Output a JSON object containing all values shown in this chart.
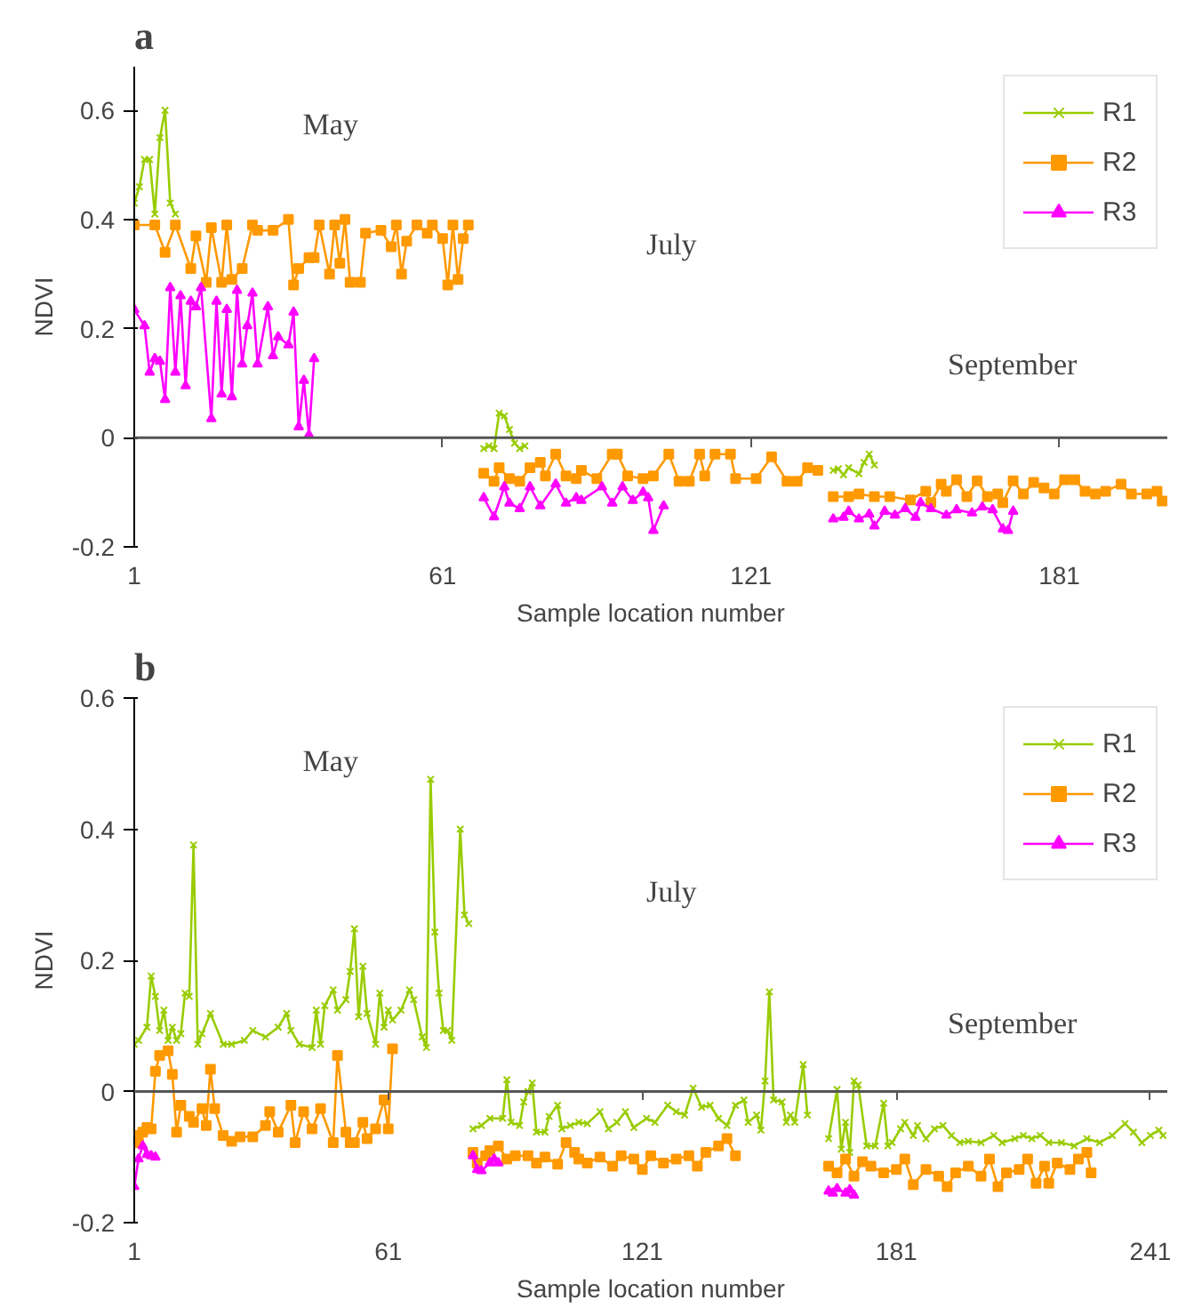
{
  "chart_data": [
    {
      "type": "line",
      "title": "a",
      "xlabel": "Sample location number",
      "ylabel": "NDVI",
      "xlim": [
        1,
        202
      ],
      "ylim": [
        -0.2,
        0.68
      ],
      "xticks": [
        1,
        61,
        121,
        181
      ],
      "yticks": [
        {
          "value": -0.2,
          "label": "-0.2"
        },
        0,
        0.2,
        0.4,
        0.6
      ],
      "legend": "top right",
      "grid": false,
      "line_style": "solid",
      "annotations": [
        "May",
        "July",
        "September"
      ],
      "ref_lines": [
        {
          "axis": "y",
          "value": 0,
          "color": "#555555"
        }
      ],
      "series": [
        {
          "name": "R1",
          "color": "#99cc00",
          "marker": "cross",
          "x": [
            1,
            2,
            3,
            4,
            5,
            6,
            7,
            8,
            9,
            40,
            69,
            70,
            71,
            72,
            73,
            74,
            75,
            76,
            77,
            110,
            137,
            138,
            139,
            140,
            142,
            143,
            144,
            145
          ],
          "values": [
            0.43,
            0.46,
            0.51,
            0.51,
            0.41,
            0.55,
            0.6,
            0.43,
            0.41,
            null,
            -0.02,
            -0.015,
            -0.02,
            0.045,
            0.04,
            0.015,
            -0.01,
            -0.02,
            -0.015,
            null,
            -0.06,
            -0.057,
            -0.068,
            -0.055,
            -0.066,
            -0.045,
            -0.03,
            -0.05
          ]
        },
        {
          "name": "R2",
          "color": "#ff9900",
          "marker": "square",
          "x": [
            1,
            5,
            7,
            9,
            12,
            13,
            15,
            16,
            18,
            19,
            20,
            22,
            24,
            25,
            28,
            31,
            32,
            33,
            35,
            36,
            37,
            39,
            40,
            41,
            42,
            43,
            45,
            46,
            49,
            51,
            52,
            53,
            54,
            56,
            58,
            59,
            61,
            62,
            63,
            64,
            65,
            66,
            67,
            69,
            71,
            72,
            74,
            76,
            78,
            80,
            81,
            83,
            85,
            87,
            88,
            91,
            94,
            95,
            97,
            100,
            102,
            105,
            107,
            109,
            111,
            112,
            114,
            117,
            118,
            122,
            125,
            128,
            130,
            132,
            134,
            135.5,
            137,
            140,
            142,
            145,
            148,
            152,
            155,
            156,
            158,
            159,
            161,
            163,
            165,
            167,
            169,
            170,
            172,
            174,
            176,
            178,
            180,
            182,
            184,
            186,
            188,
            190,
            193,
            195,
            198,
            200,
            201
          ],
          "values": [
            0.39,
            0.39,
            0.34,
            0.39,
            0.31,
            0.37,
            0.285,
            0.385,
            0.285,
            0.39,
            0.29,
            0.31,
            0.39,
            0.38,
            0.38,
            0.4,
            0.28,
            0.31,
            0.33,
            0.33,
            0.39,
            0.3,
            0.39,
            0.32,
            0.4,
            0.285,
            0.285,
            0.375,
            0.38,
            0.35,
            0.39,
            0.3,
            0.36,
            0.39,
            0.375,
            0.39,
            0.365,
            0.28,
            0.39,
            0.29,
            0.365,
            0.39,
            null,
            -0.065,
            -0.08,
            -0.055,
            -0.075,
            -0.08,
            -0.055,
            -0.045,
            -0.07,
            -0.03,
            -0.07,
            -0.075,
            -0.06,
            -0.075,
            -0.03,
            -0.03,
            -0.07,
            -0.075,
            -0.07,
            -0.03,
            -0.08,
            -0.08,
            -0.03,
            -0.07,
            -0.03,
            -0.03,
            -0.075,
            -0.075,
            -0.035,
            -0.08,
            -0.08,
            -0.055,
            -0.06,
            null,
            -0.108,
            -0.108,
            -0.103,
            -0.108,
            -0.108,
            -0.114,
            -0.098,
            -0.119,
            -0.085,
            -0.098,
            -0.077,
            -0.108,
            -0.079,
            -0.108,
            -0.103,
            -0.119,
            -0.079,
            -0.103,
            -0.082,
            -0.092,
            -0.103,
            -0.077,
            -0.077,
            -0.098,
            -0.103,
            -0.098,
            -0.085,
            -0.103,
            -0.103,
            -0.098,
            -0.116
          ]
        },
        {
          "name": "R3",
          "color": "#ff00ff",
          "marker": "triangle",
          "x": [
            1,
            3,
            4,
            5,
            6,
            7,
            8,
            9,
            10,
            11,
            12,
            13,
            14,
            16,
            17,
            18,
            19,
            20,
            21,
            22,
            23,
            24,
            25,
            27,
            28,
            29,
            31,
            32,
            33,
            34,
            35,
            36,
            50,
            69,
            71,
            73,
            74,
            76,
            78,
            80,
            83,
            85,
            87,
            88,
            92,
            94,
            96,
            98,
            100,
            101,
            102,
            104,
            120,
            137,
            139,
            140,
            142,
            144,
            145,
            147,
            149,
            151,
            153,
            154,
            156,
            159,
            161,
            164,
            166,
            168,
            170,
            171,
            172
          ],
          "values": [
            0.235,
            0.205,
            0.12,
            0.145,
            0.14,
            0.07,
            0.275,
            0.12,
            0.26,
            0.095,
            0.25,
            0.24,
            0.275,
            0.035,
            0.25,
            0.08,
            0.235,
            0.075,
            0.27,
            0.135,
            0.205,
            0.265,
            0.135,
            0.24,
            0.15,
            0.185,
            0.17,
            0.23,
            0.02,
            0.105,
            0.005,
            0.145,
            null,
            -0.11,
            -0.145,
            -0.09,
            -0.12,
            -0.13,
            -0.09,
            -0.125,
            -0.085,
            -0.12,
            -0.11,
            -0.115,
            -0.09,
            -0.12,
            -0.09,
            -0.115,
            -0.1,
            -0.11,
            -0.17,
            -0.125,
            null,
            -0.149,
            -0.146,
            -0.135,
            -0.149,
            -0.14,
            -0.162,
            -0.135,
            -0.142,
            -0.13,
            -0.146,
            -0.119,
            -0.13,
            -0.142,
            -0.132,
            -0.138,
            -0.127,
            -0.132,
            -0.167,
            -0.17,
            -0.135
          ]
        }
      ]
    },
    {
      "type": "line",
      "title": "b",
      "xlabel": "Sample location number",
      "ylabel": "NDVI",
      "xlim": [
        1,
        245
      ],
      "ylim": [
        -0.2,
        0.6
      ],
      "xticks": [
        1,
        61,
        121,
        181,
        241
      ],
      "yticks": [
        {
          "value": -0.2,
          "label": "-0.2"
        },
        0,
        0.2,
        0.4,
        0.6
      ],
      "legend": "top right",
      "grid": false,
      "line_style": "solid",
      "annotations": [
        "May",
        "July",
        "September"
      ],
      "ref_lines": [
        {
          "axis": "y",
          "value": 0,
          "color": "#555555"
        }
      ],
      "series": [
        {
          "name": "R1",
          "color": "#99cc00",
          "marker": "cross",
          "x": [
            1,
            2,
            4,
            5,
            6,
            7,
            8,
            9,
            10,
            11,
            12,
            13,
            14,
            15,
            16,
            17,
            19,
            22,
            24,
            27,
            29,
            32,
            35,
            37,
            38,
            40,
            43,
            44,
            45,
            46,
            48,
            49,
            51,
            52,
            53,
            54,
            55,
            56,
            58,
            59,
            60,
            61,
            62,
            64,
            66,
            67,
            69,
            70,
            71,
            72,
            73,
            74,
            75,
            76,
            78,
            79,
            80,
            80.5,
            81,
            83,
            85,
            88,
            89,
            90,
            92,
            93,
            94,
            95,
            96,
            98,
            99,
            101,
            102,
            104,
            106,
            108,
            111,
            113,
            115,
            117,
            119,
            122,
            124,
            127,
            129,
            131,
            133,
            135,
            137,
            139,
            141,
            143,
            145,
            146,
            148,
            149,
            150,
            151,
            152,
            154,
            155,
            156,
            157,
            159,
            160,
            163,
            165,
            167,
            168,
            169,
            170,
            171,
            172,
            174,
            176,
            178,
            179,
            180,
            182,
            183,
            185,
            186,
            188,
            190,
            192,
            194,
            196,
            198,
            201,
            204,
            206,
            209,
            211,
            213,
            215,
            217,
            220,
            223,
            226,
            229,
            232,
            235,
            237,
            239,
            241,
            243,
            244
          ],
          "values": [
            0.072,
            0.078,
            0.098,
            0.176,
            0.145,
            0.093,
            0.124,
            0.078,
            0.098,
            0.078,
            0.088,
            0.15,
            0.145,
            0.376,
            0.072,
            0.088,
            0.119,
            0.072,
            0.072,
            0.078,
            0.093,
            0.083,
            0.098,
            0.119,
            0.093,
            0.072,
            0.067,
            0.124,
            0.072,
            0.131,
            0.155,
            0.124,
            0.14,
            0.183,
            0.248,
            0.114,
            0.191,
            0.119,
            0.072,
            0.15,
            0.098,
            0.124,
            0.109,
            0.124,
            0.155,
            0.14,
            0.083,
            0.067,
            0.476,
            0.243,
            0.15,
            0.093,
            0.093,
            0.078,
            0.4,
            0.269,
            0.256,
            null,
            -0.057,
            -0.052,
            -0.041,
            -0.041,
            0.018,
            -0.047,
            -0.052,
            -0.016,
            0.0,
            0.013,
            -0.062,
            -0.062,
            -0.038,
            -0.021,
            -0.057,
            -0.052,
            -0.047,
            -0.049,
            -0.031,
            -0.057,
            -0.047,
            -0.031,
            -0.055,
            -0.041,
            -0.047,
            -0.021,
            -0.031,
            -0.036,
            0.005,
            -0.024,
            -0.021,
            -0.041,
            -0.052,
            -0.021,
            -0.013,
            -0.047,
            -0.036,
            -0.059,
            0.016,
            0.152,
            -0.013,
            -0.016,
            -0.047,
            -0.036,
            -0.047,
            0.041,
            -0.036,
            null,
            -0.072,
            0.003,
            -0.088,
            -0.047,
            -0.093,
            0.016,
            0.01,
            -0.083,
            -0.083,
            -0.018,
            -0.083,
            -0.078,
            -0.057,
            -0.047,
            -0.067,
            -0.052,
            -0.072,
            -0.057,
            -0.052,
            -0.067,
            -0.078,
            -0.076,
            -0.078,
            -0.067,
            -0.078,
            -0.072,
            -0.067,
            -0.072,
            -0.067,
            -0.078,
            -0.078,
            -0.083,
            -0.072,
            -0.078,
            -0.067,
            -0.049,
            -0.062,
            -0.078,
            -0.067,
            -0.059,
            -0.067
          ]
        },
        {
          "name": "R2",
          "color": "#ff9900",
          "marker": "square",
          "x": [
            1,
            2,
            3,
            4,
            5,
            6,
            7,
            9,
            10,
            11,
            12,
            14,
            15,
            17,
            18,
            19,
            20,
            22,
            24,
            26,
            29,
            32,
            33,
            35,
            38,
            39,
            41,
            43,
            45,
            48,
            49,
            51,
            52,
            53,
            55,
            56,
            58,
            60,
            61,
            62,
            70,
            81,
            82,
            84,
            85,
            87,
            89,
            91,
            94,
            96,
            98,
            101,
            103,
            105,
            106,
            108,
            111,
            114,
            116,
            119,
            121,
            123,
            126,
            129,
            132,
            134,
            136,
            139,
            141,
            143,
            155,
            165,
            167,
            169,
            171,
            173,
            175,
            178,
            181,
            183,
            185,
            188,
            191,
            193,
            195,
            198,
            201,
            203,
            205,
            207,
            210,
            212,
            214,
            216,
            217,
            219,
            222,
            224,
            226,
            227
          ],
          "values": [
            -0.067,
            -0.078,
            -0.062,
            -0.055,
            -0.057,
            0.031,
            0.055,
            0.062,
            0.026,
            -0.062,
            -0.021,
            -0.038,
            -0.047,
            -0.026,
            -0.052,
            0.034,
            -0.026,
            -0.067,
            -0.076,
            -0.069,
            -0.069,
            -0.052,
            -0.031,
            -0.062,
            -0.021,
            -0.078,
            -0.031,
            -0.057,
            -0.026,
            -0.078,
            0.055,
            -0.062,
            -0.078,
            -0.078,
            -0.047,
            -0.072,
            -0.057,
            -0.013,
            -0.057,
            0.065,
            null,
            -0.093,
            -0.109,
            -0.098,
            -0.09,
            -0.083,
            -0.103,
            -0.098,
            -0.098,
            -0.109,
            -0.1,
            -0.111,
            -0.078,
            -0.093,
            -0.103,
            -0.109,
            -0.1,
            -0.114,
            -0.098,
            -0.103,
            -0.119,
            -0.098,
            -0.109,
            -0.103,
            -0.098,
            -0.114,
            -0.093,
            -0.083,
            -0.072,
            -0.098,
            null,
            -0.114,
            -0.124,
            -0.103,
            -0.129,
            -0.107,
            -0.114,
            -0.124,
            -0.119,
            -0.103,
            -0.142,
            -0.119,
            -0.129,
            -0.145,
            -0.124,
            -0.114,
            -0.129,
            -0.103,
            -0.145,
            -0.124,
            -0.119,
            -0.103,
            -0.14,
            -0.114,
            -0.14,
            -0.109,
            -0.119,
            -0.103,
            -0.093,
            -0.124
          ]
        },
        {
          "name": "R3",
          "color": "#ff00ff",
          "marker": "triangle",
          "x": [
            1,
            2,
            3,
            4,
            5,
            6,
            40,
            81,
            82,
            83,
            85,
            86,
            87,
            120,
            165,
            166,
            167,
            169,
            170,
            171
          ],
          "values": [
            -0.145,
            -0.103,
            -0.083,
            -0.096,
            -0.098,
            -0.1,
            null,
            -0.098,
            -0.119,
            -0.121,
            -0.109,
            -0.103,
            -0.109,
            null,
            -0.152,
            -0.155,
            -0.148,
            -0.155,
            -0.15,
            -0.158
          ]
        }
      ]
    }
  ]
}
